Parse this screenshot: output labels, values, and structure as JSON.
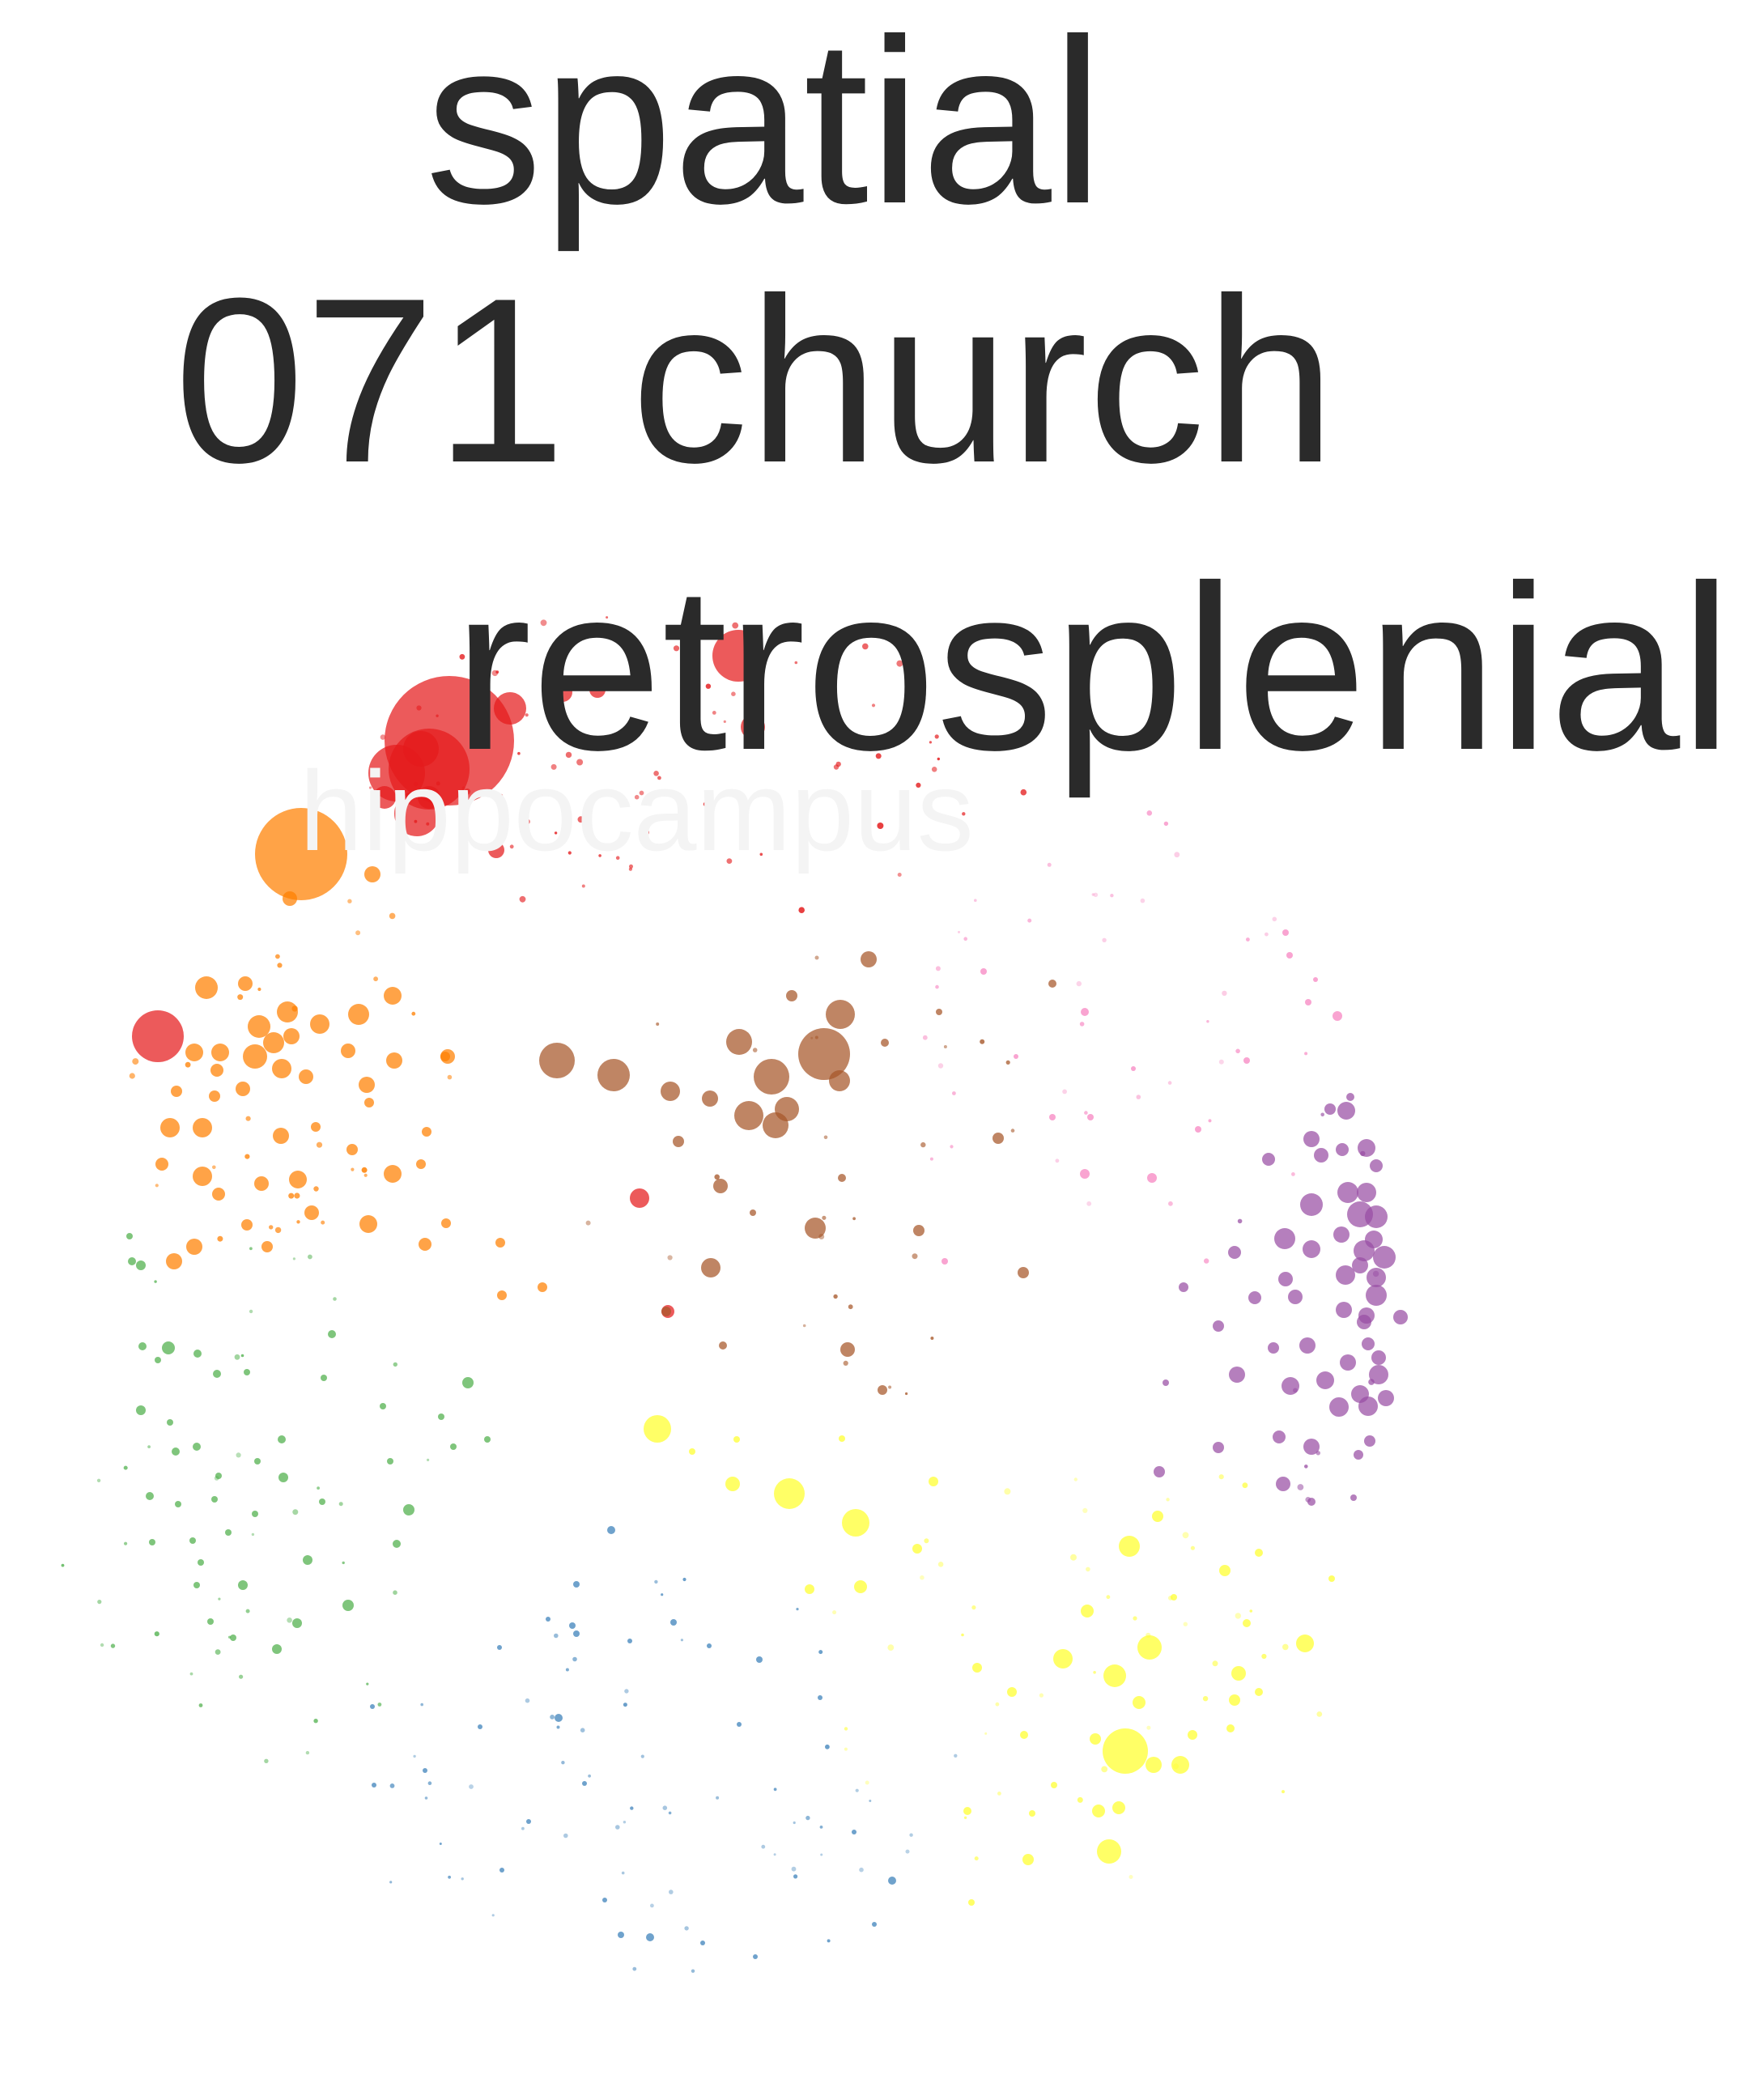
{
  "labels": {
    "spatial": "spatial",
    "church": "071 church",
    "retrosplenial": "retrosplenial",
    "hippocampus": "hippocampus"
  },
  "colors": {
    "red": "#e41a1c",
    "orange": "#ff7f00",
    "brown": "#a65628",
    "purple": "#984ea3",
    "pink": "#f781bf",
    "green": "#4daf4a",
    "blue": "#377eb8",
    "yellow": "#ffff33",
    "text": "#2a2a2a"
  },
  "clusters": [
    {
      "name": "red",
      "color_key": "red"
    },
    {
      "name": "orange",
      "color_key": "orange"
    },
    {
      "name": "brown",
      "color_key": "brown"
    },
    {
      "name": "purple",
      "color_key": "purple"
    },
    {
      "name": "pink",
      "color_key": "pink"
    },
    {
      "name": "green",
      "color_key": "green"
    },
    {
      "name": "blue",
      "color_key": "blue"
    },
    {
      "name": "yellow",
      "color_key": "yellow"
    }
  ]
}
